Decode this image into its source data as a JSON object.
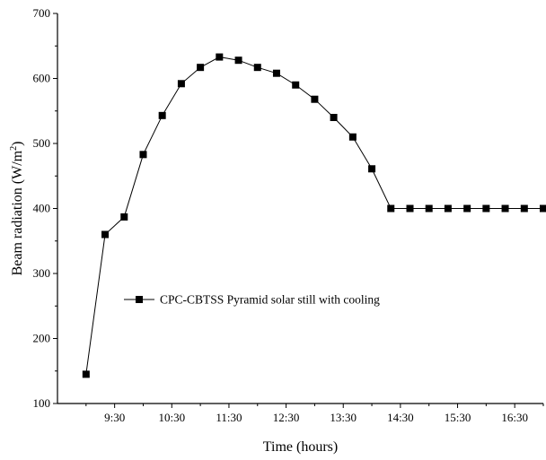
{
  "chart_data": {
    "type": "line",
    "xlabel": "Time (hours)",
    "ylabel": "Beam radiation (W/m²)",
    "ylabel_main": "Beam radiation (W/m",
    "ylabel_sup": "2",
    "ylabel_close": ")",
    "ylim": [
      100,
      700
    ],
    "yticks": [
      "100",
      "200",
      "300",
      "400",
      "500",
      "600",
      "700"
    ],
    "x_tick_labels": [
      "9:30",
      "10:30",
      "11:30",
      "12:30",
      "13:30",
      "14:30",
      "15:30",
      "16:30"
    ],
    "x_ticks_hours": [
      9.5,
      10.5,
      11.5,
      12.5,
      13.5,
      14.5,
      15.5,
      16.5
    ],
    "xlim_hours": [
      8.5,
      17.0
    ],
    "x_hours": [
      9.0,
      9.333,
      9.667,
      10.0,
      10.333,
      10.667,
      11.0,
      11.333,
      11.667,
      12.0,
      12.333,
      12.667,
      13.0,
      13.333,
      13.667,
      14.0,
      14.333,
      14.667,
      15.0,
      15.333,
      15.667,
      16.0,
      16.333,
      16.667,
      17.0
    ],
    "grid": false,
    "legend_position": "bottom-left",
    "series": [
      {
        "name": "CPC-CBTSS Pyramid solar still with cooling",
        "marker": "square-filled",
        "line": "solid",
        "x": [
          "09:00",
          "09:20",
          "09:40",
          "10:00",
          "10:20",
          "10:40",
          "11:00",
          "11:20",
          "11:40",
          "12:00",
          "12:20",
          "12:40",
          "13:00",
          "13:20",
          "13:40",
          "14:00",
          "14:20",
          "14:40",
          "15:00",
          "15:20",
          "15:40",
          "16:00",
          "16:20",
          "16:40",
          "17:00"
        ],
        "x_hours": [
          9.0,
          9.333,
          9.667,
          10.0,
          10.333,
          10.667,
          11.0,
          11.333,
          11.667,
          12.0,
          12.333,
          12.667,
          13.0,
          13.333,
          13.667,
          14.0,
          14.333,
          14.667,
          15.0,
          15.333,
          15.667,
          16.0,
          16.333,
          16.667,
          17.0
        ],
        "values": [
          145,
          360,
          387,
          483,
          543,
          592,
          617,
          633,
          628,
          617,
          608,
          590,
          568,
          540,
          510,
          461,
          400,
          400,
          400,
          400,
          400,
          400,
          400,
          400,
          400
        ]
      }
    ]
  }
}
